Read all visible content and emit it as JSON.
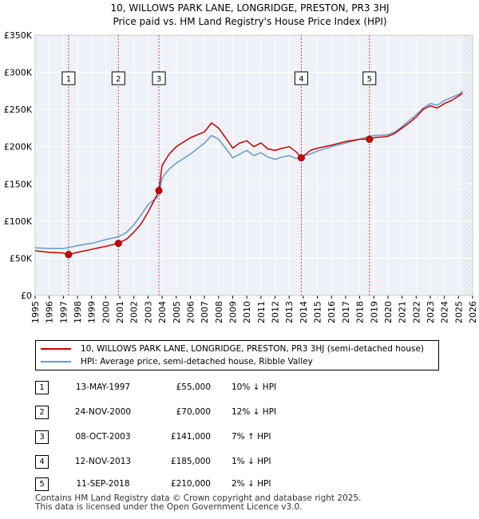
{
  "chart_data": {
    "type": "line",
    "title": "10, WILLOWS PARK LANE, LONGRIDGE, PRESTON, PR3 3HJ",
    "subtitle": "Price paid vs. HM Land Registry's House Price Index (HPI)",
    "xlabel": "",
    "ylabel": "",
    "xlim": [
      1995,
      2026
    ],
    "ylim": [
      0,
      350000
    ],
    "x_ticks": [
      "1995",
      "1996",
      "1997",
      "1998",
      "1999",
      "2000",
      "2001",
      "2002",
      "2003",
      "2004",
      "2005",
      "2006",
      "2007",
      "2008",
      "2009",
      "2010",
      "2011",
      "2012",
      "2013",
      "2014",
      "2015",
      "2016",
      "2017",
      "2018",
      "2019",
      "2020",
      "2021",
      "2022",
      "2023",
      "2024",
      "2025",
      "2026"
    ],
    "y_ticks": [
      {
        "value": 0,
        "label": "£0"
      },
      {
        "value": 50000,
        "label": "£50K"
      },
      {
        "value": 100000,
        "label": "£100K"
      },
      {
        "value": 150000,
        "label": "£150K"
      },
      {
        "value": 200000,
        "label": "£200K"
      },
      {
        "value": 250000,
        "label": "£250K"
      },
      {
        "value": 300000,
        "label": "£300K"
      },
      {
        "value": 350000,
        "label": "£350K"
      }
    ],
    "series": [
      {
        "name": "10, WILLOWS PARK LANE, LONGRIDGE, PRESTON, PR3 3HJ (semi-detached house)",
        "color": "#cc0000",
        "x": [
          1995.0,
          1996.0,
          1997.0,
          1997.37,
          1998.0,
          1999.0,
          2000.0,
          2000.9,
          2001.5,
          2002.0,
          2002.5,
          2003.0,
          2003.5,
          2003.77,
          2004.0,
          2004.5,
          2005.0,
          2006.0,
          2007.0,
          2007.5,
          2008.0,
          2008.5,
          2009.0,
          2009.5,
          2010.0,
          2010.5,
          2011.0,
          2011.5,
          2012.0,
          2012.5,
          2013.0,
          2013.5,
          2013.86,
          2014.5,
          2015.0,
          2016.0,
          2017.0,
          2018.0,
          2018.69,
          2019.0,
          2020.0,
          2020.5,
          2021.0,
          2021.5,
          2022.0,
          2022.5,
          2023.0,
          2023.5,
          2024.0,
          2024.5,
          2025.0,
          2025.3
        ],
        "y": [
          60000,
          58000,
          57000,
          55000,
          58000,
          62000,
          66000,
          70000,
          76000,
          85000,
          96000,
          112000,
          130000,
          141000,
          175000,
          190000,
          200000,
          212000,
          220000,
          232000,
          225000,
          212000,
          198000,
          205000,
          208000,
          200000,
          205000,
          197000,
          195000,
          198000,
          200000,
          193000,
          185000,
          195000,
          198000,
          202000,
          207000,
          210000,
          210000,
          212000,
          214000,
          218000,
          225000,
          232000,
          240000,
          250000,
          255000,
          252000,
          258000,
          262000,
          268000,
          272000
        ]
      },
      {
        "name": "HPI: Average price, semi-detached house, Ribble Valley",
        "color": "#6699cc",
        "x": [
          1995.0,
          1996.0,
          1997.0,
          1998.0,
          1999.0,
          2000.0,
          2000.9,
          2001.5,
          2002.0,
          2002.5,
          2003.0,
          2003.5,
          2003.77,
          2004.0,
          2004.5,
          2005.0,
          2006.0,
          2007.0,
          2007.5,
          2008.0,
          2008.5,
          2009.0,
          2009.5,
          2010.0,
          2010.5,
          2011.0,
          2011.5,
          2012.0,
          2012.5,
          2013.0,
          2013.5,
          2013.86,
          2014.5,
          2015.0,
          2016.0,
          2017.0,
          2018.0,
          2018.69,
          2019.0,
          2020.0,
          2020.5,
          2021.0,
          2021.5,
          2022.0,
          2022.5,
          2023.0,
          2023.5,
          2024.0,
          2024.5,
          2025.0,
          2025.3
        ],
        "y": [
          64000,
          63000,
          63000,
          67000,
          70000,
          75000,
          79000,
          85000,
          95000,
          108000,
          122000,
          130000,
          134000,
          158000,
          170000,
          178000,
          190000,
          205000,
          215000,
          210000,
          198000,
          185000,
          190000,
          195000,
          188000,
          192000,
          186000,
          183000,
          186000,
          188000,
          184000,
          187000,
          190000,
          194000,
          200000,
          205000,
          210000,
          214000,
          215000,
          216000,
          220000,
          227000,
          235000,
          243000,
          252000,
          258000,
          256000,
          262000,
          266000,
          270000,
          275000
        ]
      }
    ],
    "sales": [
      {
        "id": "1",
        "x": 1997.37,
        "price": 55000
      },
      {
        "id": "2",
        "x": 2000.9,
        "price": 70000
      },
      {
        "id": "3",
        "x": 2003.77,
        "price": 141000
      },
      {
        "id": "4",
        "x": 2013.86,
        "price": 185000
      },
      {
        "id": "5",
        "x": 2018.69,
        "price": 210000
      }
    ],
    "future_shade_from": 2025.3,
    "grid": true
  },
  "legend": {
    "property_label": "10, WILLOWS PARK LANE, LONGRIDGE, PRESTON, PR3 3HJ (semi-detached house)",
    "hpi_label": "HPI: Average price, semi-detached house, Ribble Valley"
  },
  "sales_table": [
    {
      "id": "1",
      "date": "13-MAY-1997",
      "price": "£55,000",
      "hpi": "10% ↓ HPI"
    },
    {
      "id": "2",
      "date": "24-NOV-2000",
      "price": "£70,000",
      "hpi": "12% ↓ HPI"
    },
    {
      "id": "3",
      "date": "08-OCT-2003",
      "price": "£141,000",
      "hpi": "7% ↑ HPI"
    },
    {
      "id": "4",
      "date": "12-NOV-2013",
      "price": "£185,000",
      "hpi": "1% ↓ HPI"
    },
    {
      "id": "5",
      "date": "11-SEP-2018",
      "price": "£210,000",
      "hpi": "2% ↓ HPI"
    }
  ],
  "footer": {
    "line1": "Contains HM Land Registry data © Crown copyright and database right 2025.",
    "line2": "This data is licensed under the Open Government Licence v3.0."
  },
  "colors": {
    "property": "#cc0000",
    "hpi": "#6699cc",
    "grid": "#e6e6e6",
    "plot_bg": "#eef2f8",
    "sale_line": "#cc0000",
    "future_hatch": "#cccccc"
  }
}
